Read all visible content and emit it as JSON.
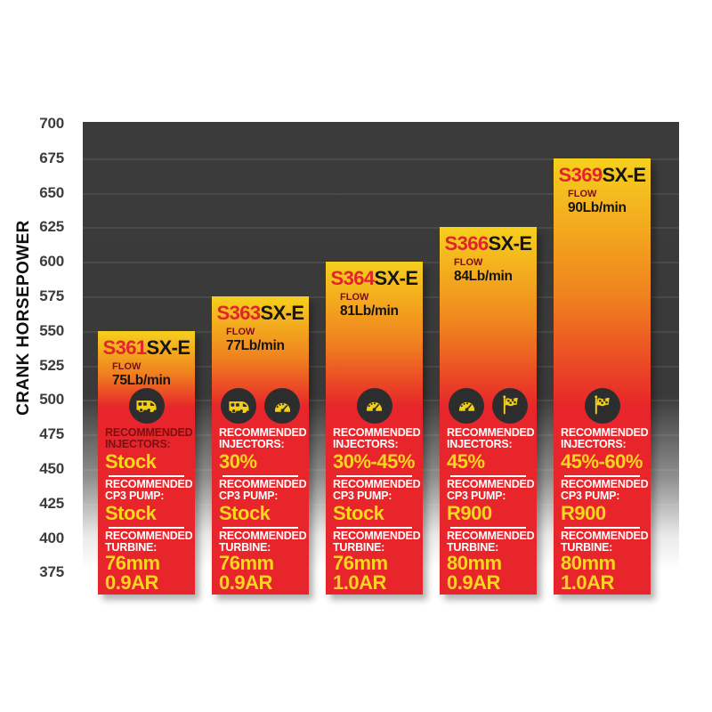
{
  "chart_data": {
    "type": "bar",
    "title": "",
    "xlabel": "",
    "ylabel": "CRANK HORSEPOWER",
    "ylim": [
      375,
      700
    ],
    "ytick_step": 25,
    "yticks": [
      700,
      675,
      650,
      625,
      600,
      575,
      550,
      525,
      500,
      475,
      450,
      425,
      400,
      375
    ],
    "grid": true,
    "legend": false,
    "categories": [
      "S361SX-E",
      "S363SX-E",
      "S364SX-E",
      "S366SX-E",
      "S369SX-E"
    ],
    "values": [
      550,
      575,
      600,
      625,
      675
    ],
    "labels": {
      "flow": "FLOW",
      "injectors": [
        "RECOMMENDED",
        "INJECTORS:"
      ],
      "cp3": [
        "RECOMMENDED",
        "CP3 PUMP:"
      ],
      "turbine": [
        "RECOMMENDED",
        "TURBINE:"
      ]
    },
    "bars": [
      {
        "model": "S361",
        "series": "SX-E",
        "hp": 550,
        "flow": "75Lb/min",
        "icons": [
          "camper"
        ],
        "injectors": "Stock",
        "cp3": "Stock",
        "turbine": [
          "76mm",
          "0.9AR"
        ]
      },
      {
        "model": "S363",
        "series": "SX-E",
        "hp": 575,
        "flow": "77Lb/min",
        "icons": [
          "camper",
          "gauge"
        ],
        "injectors": "30%",
        "cp3": "Stock",
        "turbine": [
          "76mm",
          "0.9AR"
        ]
      },
      {
        "model": "S364",
        "series": "SX-E",
        "hp": 600,
        "flow": "81Lb/min",
        "icons": [
          "gauge"
        ],
        "injectors": "30%-45%",
        "cp3": "Stock",
        "turbine": [
          "76mm",
          "1.0AR"
        ]
      },
      {
        "model": "S366",
        "series": "SX-E",
        "hp": 625,
        "flow": "84Lb/min",
        "icons": [
          "gauge",
          "flag"
        ],
        "injectors": "45%",
        "cp3": "R900",
        "turbine": [
          "80mm",
          "0.9AR"
        ]
      },
      {
        "model": "S369",
        "series": "SX-E",
        "hp": 675,
        "flow": "90Lb/min",
        "icons": [
          "flag"
        ],
        "injectors": "45%-60%",
        "cp3": "R900",
        "turbine": [
          "80mm",
          "1.0AR"
        ]
      }
    ],
    "colors": {
      "bar_yellow": "#f6d01d",
      "bar_orange": "#f0821f",
      "bar_red": "#e7252a",
      "model_red": "#e0252b",
      "value_yellow": "#f8d51f",
      "label_white": "#ffffff",
      "flow_label_dark": "#7a1114",
      "injectors_label_bar1": "#7a1114",
      "plot_dark": "#3b3b3b",
      "icon_circle": "#2d2d2d",
      "icon_glyph": "#f2cf1b"
    }
  }
}
